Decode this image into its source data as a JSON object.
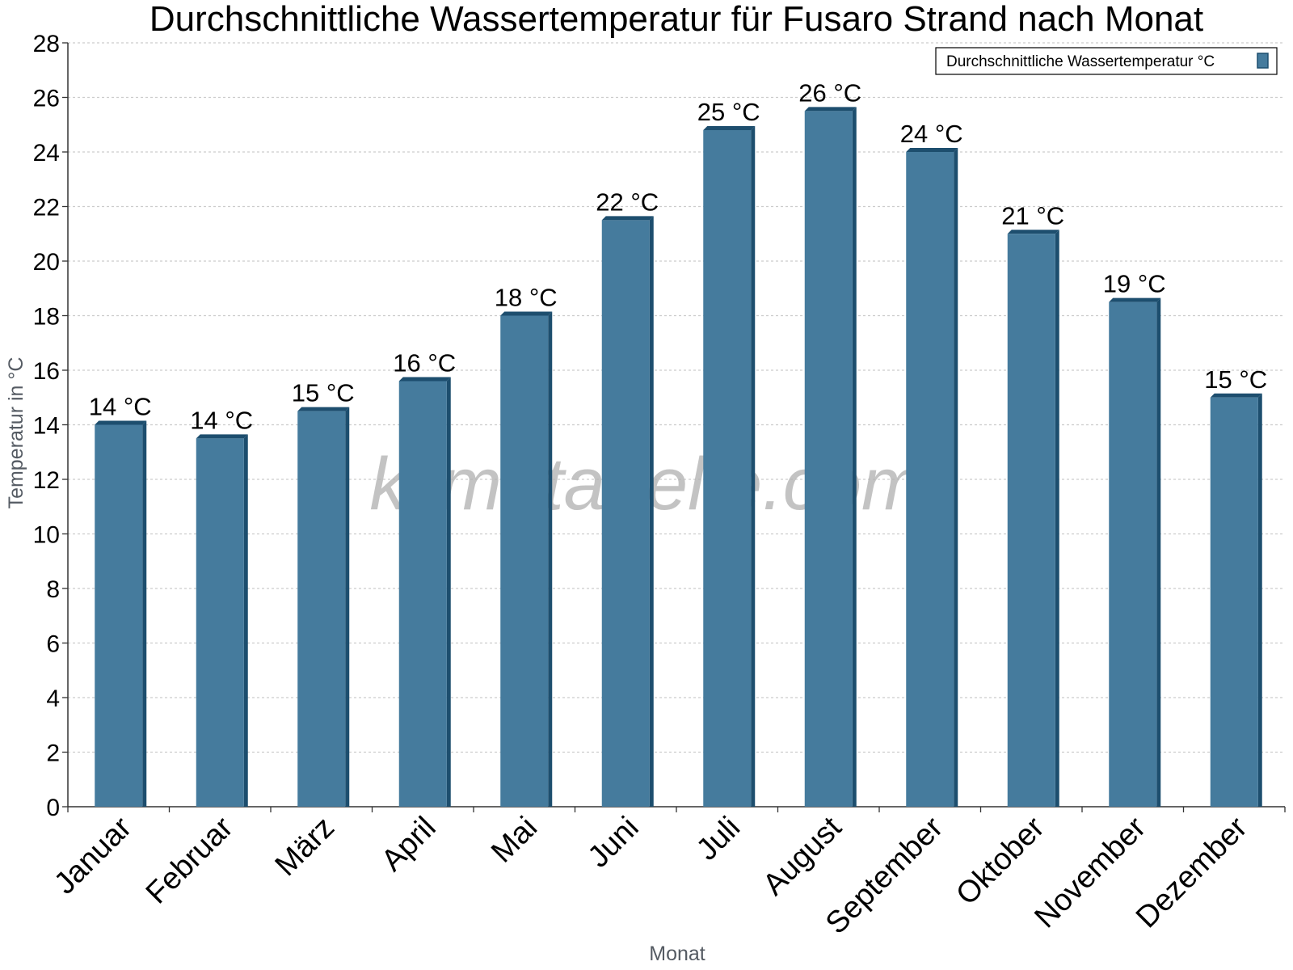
{
  "chart_data": {
    "type": "bar",
    "title": "Durchschnittliche Wassertemperatur für Fusaro Strand nach Monat",
    "xlabel": "Monat",
    "ylabel": "Temperatur in °C",
    "ylim": [
      0,
      28
    ],
    "ytick_step": 2,
    "grid": true,
    "legend_position": "top-right",
    "categories": [
      "Januar",
      "Februar",
      "März",
      "April",
      "Mai",
      "Juni",
      "Juli",
      "August",
      "September",
      "Oktober",
      "November",
      "Dezember"
    ],
    "series": [
      {
        "name": "Durchschnittliche Wassertemperatur °C",
        "values": [
          14.0,
          13.5,
          14.5,
          15.6,
          18.0,
          21.5,
          24.8,
          25.5,
          24.0,
          21.0,
          18.5,
          15.0
        ],
        "labels": [
          "14 °C",
          "14 °C",
          "15 °C",
          "16 °C",
          "18 °C",
          "22 °C",
          "25 °C",
          "26 °C",
          "24 °C",
          "21 °C",
          "19 °C",
          "15 °C"
        ]
      }
    ],
    "colors": {
      "bar": "#457b9d",
      "bar_dark": "#1d4e6e",
      "grid": "#cccccc",
      "axis": "#333333"
    }
  },
  "watermark": "klimatabelle.com"
}
